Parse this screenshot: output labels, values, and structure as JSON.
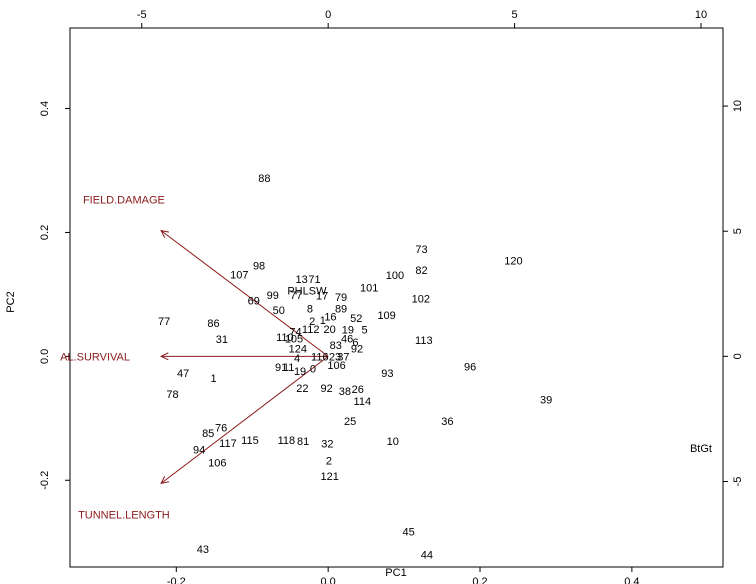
{
  "chart_data": {
    "type": "scatter",
    "subtype": "biplot",
    "xlabel": "PC1",
    "ylabel": "PC2",
    "xlim": [
      -0.34,
      0.52
    ],
    "ylim": [
      -0.34,
      0.53
    ],
    "x_ticks": [
      "-0.2",
      "0.0",
      "0.2",
      "0.4"
    ],
    "x_tick_values": [
      -0.2,
      0.0,
      0.2,
      0.4
    ],
    "y_ticks": [
      "-0.2",
      "0.0",
      "0.2",
      "0.4"
    ],
    "y_tick_values": [
      -0.2,
      0.0,
      0.2,
      0.4
    ],
    "top_ticks": [
      "-5",
      "0",
      "5",
      "10"
    ],
    "top_tick_values": [
      -5,
      0,
      5,
      10
    ],
    "right_ticks": [
      "-5",
      "0",
      "5",
      "10"
    ],
    "right_tick_values": [
      -5,
      0,
      5,
      10
    ],
    "colors": {
      "loadings": "#8B1A1A",
      "points": "#000000"
    },
    "loadings": [
      {
        "label": "FIELD.DAMAGE",
        "x": -0.22,
        "y": 0.203,
        "label_x": -0.269,
        "label_y": 0.253
      },
      {
        "label": "AL.SURVIVAL",
        "x": -0.22,
        "y": 0.0,
        "label_x": -0.307,
        "label_y": 0.0
      },
      {
        "label": "TUNNEL.LENGTH",
        "x": -0.22,
        "y": -0.205,
        "label_x": -0.269,
        "label_y": -0.255
      },
      {
        "label": "PHLSW",
        "x": -0.028,
        "y": 0.106,
        "label_x": -0.028,
        "label_y": 0.106,
        "no_arrow": true
      },
      {
        "label": "BtGt",
        "x": 0.491,
        "y": -0.148,
        "label_x": 0.491,
        "label_y": -0.148,
        "no_arrow": true
      }
    ],
    "points": [
      {
        "label": "88",
        "x": -0.084,
        "y": 0.288
      },
      {
        "label": "73",
        "x": 0.123,
        "y": 0.173
      },
      {
        "label": "120",
        "x": 0.244,
        "y": 0.155
      },
      {
        "label": "98",
        "x": -0.091,
        "y": 0.147
      },
      {
        "label": "107",
        "x": -0.117,
        "y": 0.132
      },
      {
        "label": "82",
        "x": 0.123,
        "y": 0.139
      },
      {
        "label": "100",
        "x": 0.088,
        "y": 0.131
      },
      {
        "label": "13",
        "x": -0.035,
        "y": 0.125
      },
      {
        "label": "71",
        "x": -0.018,
        "y": 0.125
      },
      {
        "label": "101",
        "x": 0.054,
        "y": 0.111
      },
      {
        "label": "99",
        "x": -0.073,
        "y": 0.099
      },
      {
        "label": "77",
        "x": -0.042,
        "y": 0.099
      },
      {
        "label": "17",
        "x": -0.008,
        "y": 0.098
      },
      {
        "label": "79",
        "x": 0.017,
        "y": 0.096
      },
      {
        "label": "102",
        "x": 0.122,
        "y": 0.093
      },
      {
        "label": "69",
        "x": -0.098,
        "y": 0.09
      },
      {
        "label": "50",
        "x": -0.065,
        "y": 0.075
      },
      {
        "label": "8",
        "x": -0.024,
        "y": 0.077
      },
      {
        "label": "89",
        "x": 0.017,
        "y": 0.077
      },
      {
        "label": "109",
        "x": 0.077,
        "y": 0.067
      },
      {
        "label": "52",
        "x": 0.037,
        "y": 0.062
      },
      {
        "label": "16",
        "x": 0.003,
        "y": 0.064
      },
      {
        "label": "77",
        "x": -0.216,
        "y": 0.057
      },
      {
        "label": "86",
        "x": -0.151,
        "y": 0.054
      },
      {
        "label": "2",
        "x": -0.021,
        "y": 0.057
      },
      {
        "label": "1",
        "x": -0.007,
        "y": 0.059
      },
      {
        "label": "74",
        "x": -0.043,
        "y": 0.04
      },
      {
        "label": "112",
        "x": -0.023,
        "y": 0.044
      },
      {
        "label": "20",
        "x": 0.002,
        "y": 0.044
      },
      {
        "label": "19",
        "x": 0.026,
        "y": 0.043
      },
      {
        "label": "5",
        "x": 0.048,
        "y": 0.043
      },
      {
        "label": "31",
        "x": -0.14,
        "y": 0.028
      },
      {
        "label": "110",
        "x": -0.057,
        "y": 0.031
      },
      {
        "label": "105",
        "x": -0.045,
        "y": 0.029
      },
      {
        "label": "46",
        "x": 0.025,
        "y": 0.029
      },
      {
        "label": "113",
        "x": 0.126,
        "y": 0.026
      },
      {
        "label": "83",
        "x": 0.01,
        "y": 0.018
      },
      {
        "label": "6",
        "x": 0.036,
        "y": 0.023
      },
      {
        "label": "124",
        "x": -0.04,
        "y": 0.013
      },
      {
        "label": "92",
        "x": 0.038,
        "y": 0.013
      },
      {
        "label": "116",
        "x": -0.011,
        "y": 0.0
      },
      {
        "label": "23",
        "x": 0.009,
        "y": 0.0
      },
      {
        "label": "37",
        "x": 0.02,
        "y": 0.0
      },
      {
        "label": "4",
        "x": -0.041,
        "y": -0.003
      },
      {
        "label": "106",
        "x": 0.011,
        "y": -0.014
      },
      {
        "label": "91",
        "x": -0.062,
        "y": -0.017
      },
      {
        "label": "11",
        "x": -0.052,
        "y": -0.017
      },
      {
        "label": "19",
        "x": -0.037,
        "y": -0.024
      },
      {
        "label": "0",
        "x": -0.02,
        "y": -0.02
      },
      {
        "label": "96",
        "x": 0.187,
        "y": -0.016
      },
      {
        "label": "47",
        "x": -0.191,
        "y": -0.027
      },
      {
        "label": "93",
        "x": 0.078,
        "y": -0.027
      },
      {
        "label": "1",
        "x": -0.151,
        "y": -0.035
      },
      {
        "label": "22",
        "x": -0.034,
        "y": -0.051
      },
      {
        "label": "92",
        "x": -0.002,
        "y": -0.051
      },
      {
        "label": "38",
        "x": 0.022,
        "y": -0.056
      },
      {
        "label": "26",
        "x": 0.039,
        "y": -0.053
      },
      {
        "label": "78",
        "x": -0.205,
        "y": -0.061
      },
      {
        "label": "114",
        "x": 0.045,
        "y": -0.072
      },
      {
        "label": "39",
        "x": 0.287,
        "y": -0.07
      },
      {
        "label": "25",
        "x": 0.029,
        "y": -0.104
      },
      {
        "label": "36",
        "x": 0.157,
        "y": -0.104
      },
      {
        "label": "76",
        "x": -0.141,
        "y": -0.115
      },
      {
        "label": "85",
        "x": -0.158,
        "y": -0.124
      },
      {
        "label": "115",
        "x": -0.103,
        "y": -0.135
      },
      {
        "label": "117",
        "x": -0.132,
        "y": -0.14
      },
      {
        "label": "118",
        "x": -0.055,
        "y": -0.135
      },
      {
        "label": "81",
        "x": -0.033,
        "y": -0.137
      },
      {
        "label": "32",
        "x": -0.001,
        "y": -0.141
      },
      {
        "label": "10",
        "x": 0.085,
        "y": -0.137
      },
      {
        "label": "94",
        "x": -0.17,
        "y": -0.15
      },
      {
        "label": "106",
        "x": -0.146,
        "y": -0.171
      },
      {
        "label": "2",
        "x": 0.001,
        "y": -0.168
      },
      {
        "label": "121",
        "x": 0.002,
        "y": -0.193
      },
      {
        "label": "45",
        "x": 0.106,
        "y": -0.283
      },
      {
        "label": "43",
        "x": -0.165,
        "y": -0.311
      },
      {
        "label": "44",
        "x": 0.13,
        "y": -0.32
      }
    ]
  }
}
